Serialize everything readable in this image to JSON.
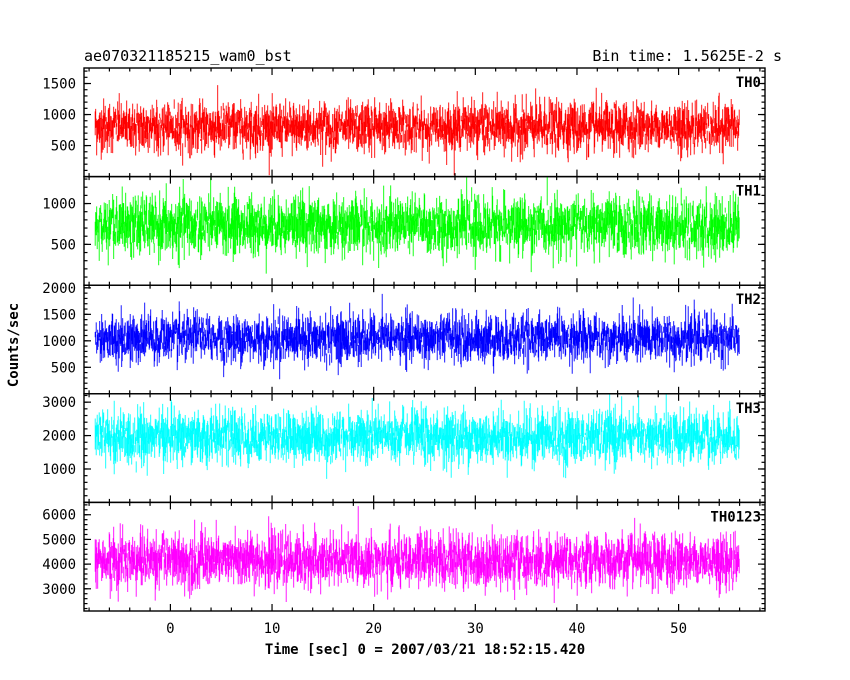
{
  "chart_data": {
    "type": "line",
    "title": "ae070321185215_wam0_bst",
    "subtitle": "Bin time: 1.5625E-2 s",
    "xlabel": "Time [sec] 0 = 2007/03/21 18:52:15.420",
    "ylabel": "Counts/sec",
    "xlim": [
      -8.5,
      58.5
    ],
    "xticks": [
      0,
      10,
      20,
      30,
      40,
      50
    ],
    "grid": false,
    "panels": [
      {
        "name": "TH0",
        "color": "#ff0000",
        "ylim": [
          0,
          1750
        ],
        "yticks": [
          500,
          1000,
          1500
        ],
        "mean": 800,
        "spread": 330,
        "x_range": [
          -7.4,
          56
        ]
      },
      {
        "name": "TH1",
        "color": "#00ff00",
        "ylim": [
          0,
          1330
        ],
        "yticks": [
          500,
          1000
        ],
        "mean": 730,
        "spread": 290,
        "x_range": [
          -7.4,
          56
        ]
      },
      {
        "name": "TH2",
        "color": "#0000ff",
        "ylim": [
          0,
          2050
        ],
        "yticks": [
          500,
          1000,
          1500,
          2000
        ],
        "mean": 1050,
        "spread": 380,
        "x_range": [
          -7.4,
          56
        ]
      },
      {
        "name": "TH3",
        "color": "#00ffff",
        "ylim": [
          0,
          3250
        ],
        "yticks": [
          1000,
          2000,
          3000
        ],
        "mean": 1950,
        "spread": 650,
        "x_range": [
          -7.4,
          56
        ]
      },
      {
        "name": "TH0123",
        "color": "#ff00ff",
        "ylim": [
          2100,
          6500
        ],
        "yticks": [
          3000,
          4000,
          5000,
          6000
        ],
        "mean": 4150,
        "spread": 900,
        "x_range": [
          -7.4,
          56
        ]
      }
    ]
  }
}
